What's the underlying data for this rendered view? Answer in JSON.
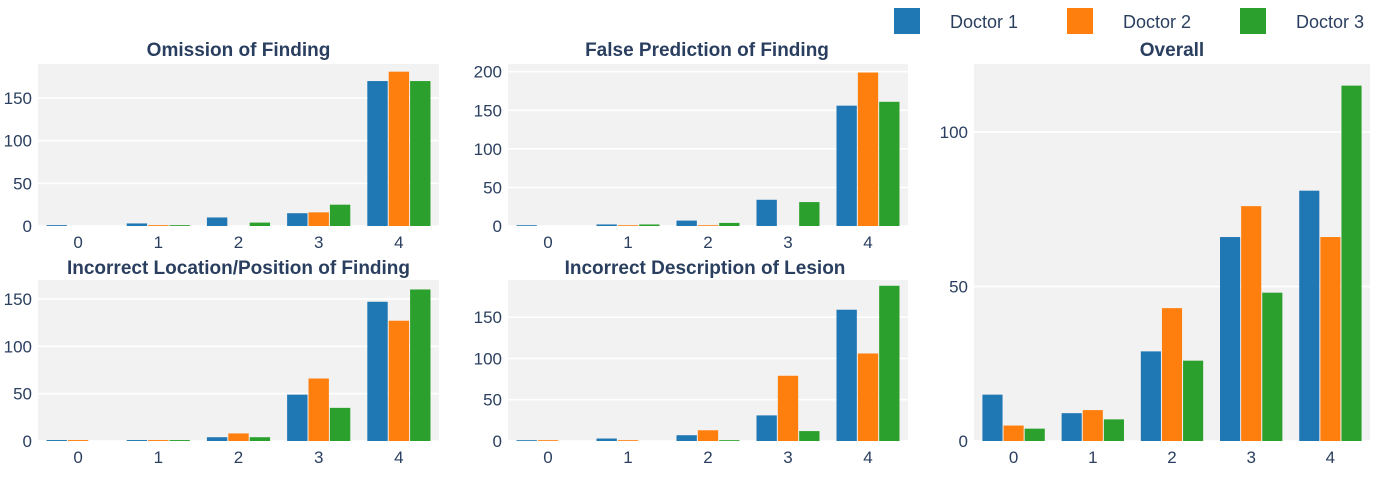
{
  "legend": {
    "position": "top-right",
    "orientation": "horizontal"
  },
  "chart_data": [
    {
      "type": "bar",
      "title": "Omission of Finding",
      "categories": [
        "0",
        "1",
        "2",
        "3",
        "4"
      ],
      "ylim": [
        0,
        190
      ],
      "yticks": [
        0,
        50,
        100,
        150
      ],
      "series": [
        {
          "name": "Doctor 1",
          "color": "#1f77b4",
          "values": [
            1,
            3,
            10,
            15,
            170
          ]
        },
        {
          "name": "Doctor 2",
          "color": "#ff7f0e",
          "values": [
            0,
            1,
            0,
            16,
            181
          ]
        },
        {
          "name": "Doctor 3",
          "color": "#2ca02c",
          "values": [
            0,
            1,
            4,
            25,
            170
          ]
        }
      ]
    },
    {
      "type": "bar",
      "title": "False Prediction of Finding",
      "categories": [
        "0",
        "1",
        "2",
        "3",
        "4"
      ],
      "ylim": [
        0,
        210
      ],
      "yticks": [
        0,
        50,
        100,
        150,
        200
      ],
      "series": [
        {
          "name": "Doctor 1",
          "color": "#1f77b4",
          "values": [
            1,
            2,
            7,
            34,
            156
          ]
        },
        {
          "name": "Doctor 2",
          "color": "#ff7f0e",
          "values": [
            0,
            1,
            1,
            0,
            199
          ]
        },
        {
          "name": "Doctor 3",
          "color": "#2ca02c",
          "values": [
            0,
            2,
            4,
            31,
            161
          ]
        }
      ]
    },
    {
      "type": "bar",
      "title": "Incorrect Location/Position of Finding",
      "categories": [
        "0",
        "1",
        "2",
        "3",
        "4"
      ],
      "ylim": [
        0,
        170
      ],
      "yticks": [
        0,
        50,
        100,
        150
      ],
      "series": [
        {
          "name": "Doctor 1",
          "color": "#1f77b4",
          "values": [
            1,
            1,
            4,
            49,
            147
          ]
        },
        {
          "name": "Doctor 2",
          "color": "#ff7f0e",
          "values": [
            1,
            1,
            8,
            66,
            127
          ]
        },
        {
          "name": "Doctor 3",
          "color": "#2ca02c",
          "values": [
            0,
            1,
            4,
            35,
            160
          ]
        }
      ]
    },
    {
      "type": "bar",
      "title": "Incorrect Description of Lesion",
      "categories": [
        "0",
        "1",
        "2",
        "3",
        "4"
      ],
      "ylim": [
        0,
        195
      ],
      "yticks": [
        0,
        50,
        100,
        150
      ],
      "series": [
        {
          "name": "Doctor 1",
          "color": "#1f77b4",
          "values": [
            1,
            3,
            7,
            31,
            159
          ]
        },
        {
          "name": "Doctor 2",
          "color": "#ff7f0e",
          "values": [
            1,
            1,
            13,
            79,
            106
          ]
        },
        {
          "name": "Doctor 3",
          "color": "#2ca02c",
          "values": [
            0,
            0,
            1,
            12,
            188
          ]
        }
      ]
    },
    {
      "type": "bar",
      "title": "Overall",
      "categories": [
        "0",
        "1",
        "2",
        "3",
        "4"
      ],
      "ylim": [
        0,
        122
      ],
      "yticks": [
        0,
        50,
        100
      ],
      "series": [
        {
          "name": "Doctor 1",
          "color": "#1f77b4",
          "values": [
            15,
            9,
            29,
            66,
            81
          ]
        },
        {
          "name": "Doctor 2",
          "color": "#ff7f0e",
          "values": [
            5,
            10,
            43,
            76,
            66
          ]
        },
        {
          "name": "Doctor 3",
          "color": "#2ca02c",
          "values": [
            4,
            7,
            26,
            48,
            115
          ]
        }
      ]
    }
  ]
}
